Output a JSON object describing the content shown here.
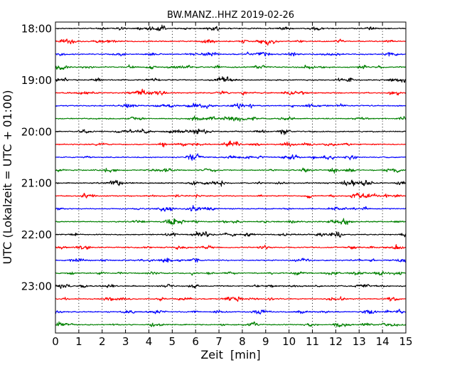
{
  "chart_data": {
    "type": "line",
    "title": "BW.MANZ..HHZ 2019-02-26",
    "xlabel": "Zeit  [min]",
    "ylabel": "UTC (Lokalzeit = UTC + 01:00)",
    "xlim": [
      0,
      15
    ],
    "x_ticks": [
      "0",
      "1",
      "2",
      "3",
      "4",
      "5",
      "6",
      "7",
      "8",
      "9",
      "10",
      "11",
      "12",
      "13",
      "14",
      "15"
    ],
    "y_ticks": [
      "18:00",
      "19:00",
      "20:00",
      "21:00",
      "22:00",
      "23:00"
    ],
    "grid": "x-dotted",
    "series_colors": [
      "#000000",
      "#ff0000",
      "#0000ff",
      "#008000"
    ],
    "traces": [
      {
        "start": "18:00",
        "color": "#000000"
      },
      {
        "start": "18:15",
        "color": "#ff0000"
      },
      {
        "start": "18:30",
        "color": "#0000ff"
      },
      {
        "start": "18:45",
        "color": "#008000"
      },
      {
        "start": "19:00",
        "color": "#000000"
      },
      {
        "start": "19:15",
        "color": "#ff0000"
      },
      {
        "start": "19:30",
        "color": "#0000ff"
      },
      {
        "start": "19:45",
        "color": "#008000"
      },
      {
        "start": "20:00",
        "color": "#000000"
      },
      {
        "start": "20:15",
        "color": "#ff0000"
      },
      {
        "start": "20:30",
        "color": "#0000ff"
      },
      {
        "start": "20:45",
        "color": "#008000"
      },
      {
        "start": "21:00",
        "color": "#000000"
      },
      {
        "start": "21:15",
        "color": "#ff0000"
      },
      {
        "start": "21:30",
        "color": "#0000ff"
      },
      {
        "start": "21:45",
        "color": "#008000"
      },
      {
        "start": "22:00",
        "color": "#000000"
      },
      {
        "start": "22:15",
        "color": "#ff0000"
      },
      {
        "start": "22:30",
        "color": "#0000ff"
      },
      {
        "start": "22:45",
        "color": "#008000"
      },
      {
        "start": "23:00",
        "color": "#000000"
      },
      {
        "start": "23:15",
        "color": "#ff0000"
      },
      {
        "start": "23:30",
        "color": "#0000ff"
      },
      {
        "start": "23:45",
        "color": "#008000"
      }
    ]
  }
}
